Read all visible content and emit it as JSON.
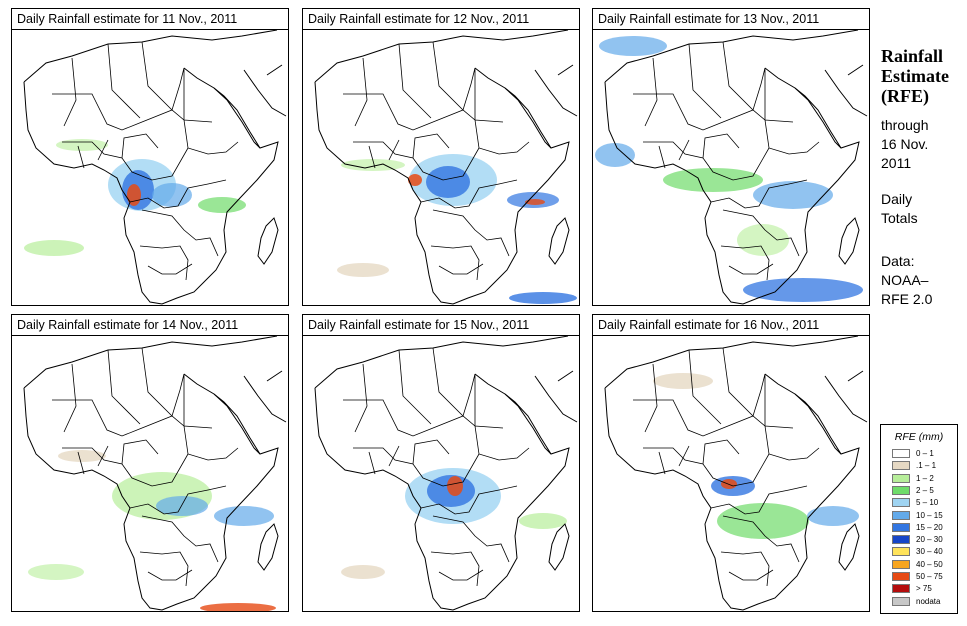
{
  "panels": [
    {
      "title": "Daily Rainfall estimate for  11 Nov., 2011"
    },
    {
      "title": "Daily Rainfall estimate for  12 Nov., 2011"
    },
    {
      "title": "Daily Rainfall estimate for  13 Nov., 2011"
    },
    {
      "title": "Daily Rainfall estimate for  14 Nov., 2011"
    },
    {
      "title": "Daily Rainfall estimate for  15 Nov., 2011"
    },
    {
      "title": "Daily Rainfall estimate for  16 Nov., 2011"
    }
  ],
  "sidebar": {
    "title_line1": "Rainfall",
    "title_line2": "Estimate",
    "title_line3": "(RFE)",
    "through_label": "through",
    "date_line1": "16 Nov.",
    "date_line2": "2011",
    "totals_line1": "Daily",
    "totals_line2": "Totals",
    "data_label": "Data:",
    "source_line1": "NOAA–",
    "source_line2": "RFE 2.0"
  },
  "legend": {
    "title": "RFE (mm)",
    "items": [
      {
        "label": "0 – 1",
        "color": "#ffffff"
      },
      {
        "label": ".1 – 1",
        "color": "#e6d9c4"
      },
      {
        "label": "1 – 2",
        "color": "#b7ee9a"
      },
      {
        "label": "2 – 5",
        "color": "#6fdc6a"
      },
      {
        "label": "5 – 10",
        "color": "#9fd4f2"
      },
      {
        "label": "10 – 15",
        "color": "#63aaea"
      },
      {
        "label": "15 – 20",
        "color": "#3276e1"
      },
      {
        "label": "20 – 30",
        "color": "#1746c8"
      },
      {
        "label": "30 – 40",
        "color": "#ffe35a"
      },
      {
        "label": "40 – 50",
        "color": "#f7a51f"
      },
      {
        "label": "50 – 75",
        "color": "#e64a14"
      },
      {
        "label": "> 75",
        "color": "#b40d0d"
      },
      {
        "label": "nodata",
        "color": "#c7c7c7"
      }
    ]
  }
}
